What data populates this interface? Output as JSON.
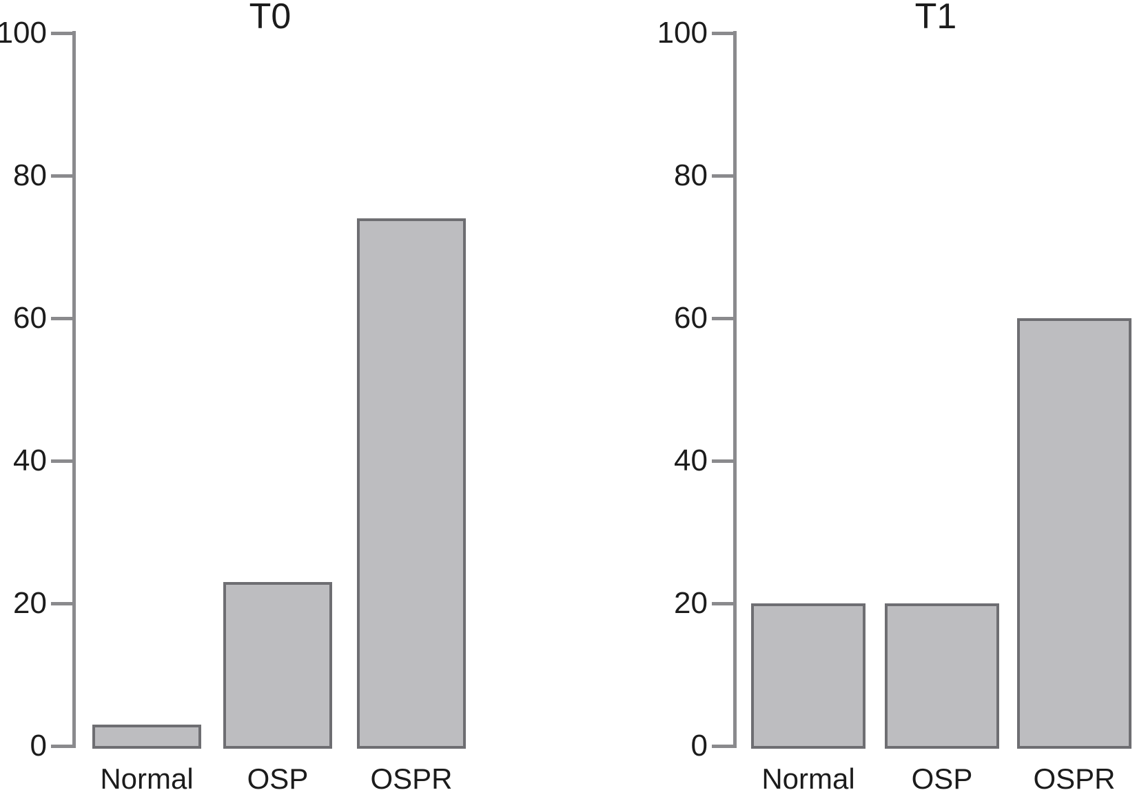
{
  "figure": {
    "background": "#ffffff"
  },
  "colors": {
    "background": "#ffffff",
    "axis": "#8a8a8d",
    "text": "#1c1c1c",
    "bar_fill": "#bdbdc0",
    "bar_border": "#6e6e72"
  },
  "chart_data": [
    {
      "type": "bar",
      "title": "T0",
      "categories": [
        "Normal",
        "OSP",
        "OSPR"
      ],
      "values": [
        3,
        23,
        74
      ],
      "xlabel": "",
      "ylabel": "",
      "ylim": [
        0,
        100
      ],
      "yticks": [
        0,
        20,
        40,
        60,
        80,
        100
      ],
      "grid": false,
      "legend_position": "none",
      "bar_fill": "#bdbdc0",
      "bar_border": "#6e6e72"
    },
    {
      "type": "bar",
      "title": "T1",
      "categories": [
        "Normal",
        "OSP",
        "OSPR"
      ],
      "values": [
        20,
        20,
        60
      ],
      "xlabel": "",
      "ylabel": "",
      "ylim": [
        0,
        100
      ],
      "yticks": [
        0,
        20,
        40,
        60,
        80,
        100
      ],
      "grid": false,
      "legend_position": "none",
      "bar_fill": "#bdbdc0",
      "bar_border": "#6e6e72"
    }
  ]
}
